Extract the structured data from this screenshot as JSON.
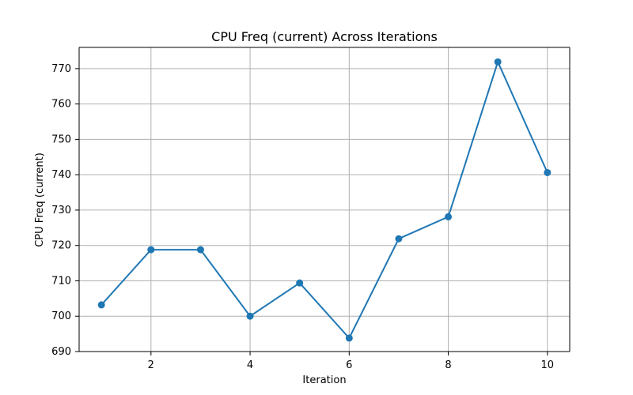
{
  "chart_data": {
    "type": "line",
    "title": "CPU Freq (current) Across Iterations",
    "xlabel": "Iteration",
    "ylabel": "CPU Freq (current)",
    "x": [
      1,
      2,
      3,
      4,
      5,
      6,
      7,
      8,
      9,
      10
    ],
    "series": [
      {
        "values": [
          703.2,
          718.8,
          718.8,
          700.0,
          709.4,
          693.8,
          721.9,
          728.1,
          771.9,
          740.6
        ],
        "color": "#1f77b4"
      }
    ],
    "xlim": [
      0.55,
      10.45
    ],
    "ylim": [
      690,
      776
    ],
    "xticks": [
      2,
      4,
      6,
      8,
      10
    ],
    "yticks": [
      690,
      700,
      710,
      720,
      730,
      740,
      750,
      760,
      770
    ],
    "grid": true,
    "marker": "circle"
  }
}
